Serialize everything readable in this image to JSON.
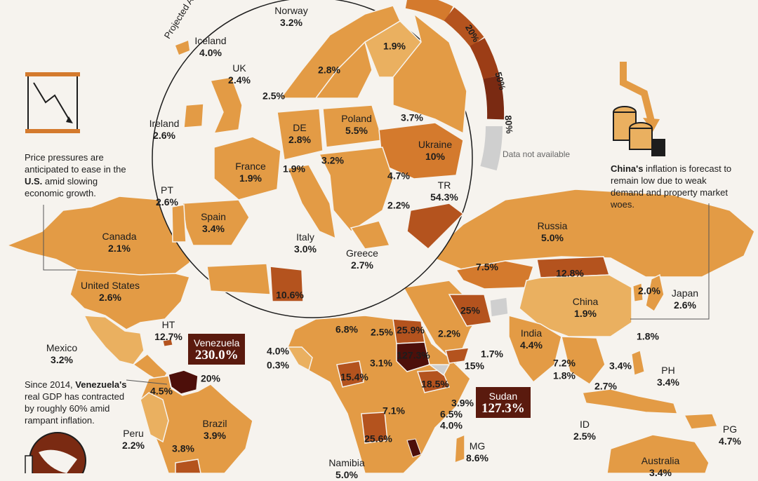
{
  "legend": {
    "title": "Projected Ann",
    "ticks": [
      "20%",
      "50%",
      "80%"
    ],
    "na_label": "Data not available"
  },
  "notes": {
    "us": {
      "pre": "Price pressures are anticipated to ease in the ",
      "bold": "U.S.",
      "post": " amid slowing economic growth."
    },
    "china": {
      "bold": "China's",
      "post": " inflation is forecast to remain low due to weak demand and property market woes."
    },
    "venezuela": {
      "pre": "Since 2014, ",
      "bold": "Venezuela's",
      "post": " real GDP has contracted by roughly 60% amid rampant inflation."
    }
  },
  "callouts": {
    "venezuela": {
      "name": "Venezuela",
      "value": "230.0%"
    },
    "sudan": {
      "name": "Sudan",
      "value": "127.3%"
    }
  },
  "europe": {
    "norway": {
      "name": "Norway",
      "value": "3.2%"
    },
    "iceland": {
      "name": "Iceland",
      "value": "4.0%"
    },
    "uk": {
      "name": "UK",
      "value": "2.4%"
    },
    "ireland": {
      "name": "Ireland",
      "value": "2.6%"
    },
    "pt": {
      "name": "PT",
      "value": "2.6%"
    },
    "france": {
      "name": "France",
      "value": "1.9%"
    },
    "spain": {
      "name": "Spain",
      "value": "3.4%"
    },
    "de": {
      "name": "DE",
      "value": "2.8%"
    },
    "poland": {
      "name": "Poland",
      "value": "5.5%"
    },
    "ukraine": {
      "name": "Ukraine",
      "value": "10%"
    },
    "italy": {
      "name": "Italy",
      "value": "3.0%"
    },
    "greece": {
      "name": "Greece",
      "value": "2.7%"
    },
    "tr": {
      "name": "TR",
      "value": "54.3%"
    },
    "v_1_9_fin": "1.9%",
    "v_2_8_swe": "2.8%",
    "v_2_5": "2.5%",
    "v_3_7": "3.7%",
    "v_1_9_ch": "1.9%",
    "v_3_2": "3.2%",
    "v_4_7": "4.7%",
    "v_2_2": "2.2%",
    "v_10_6": "10.6%"
  },
  "world": {
    "canada": {
      "name": "Canada",
      "value": "2.1%"
    },
    "us": {
      "name": "United States",
      "value": "2.6%"
    },
    "mexico": {
      "name": "Mexico",
      "value": "3.2%"
    },
    "ht": {
      "name": "HT",
      "value": "12.7%"
    },
    "peru": {
      "name": "Peru",
      "value": "2.2%"
    },
    "brazil": {
      "name": "Brazil",
      "value": "3.9%"
    },
    "russia": {
      "name": "Russia",
      "value": "5.0%"
    },
    "china": {
      "name": "China",
      "value": "1.9%"
    },
    "japan": {
      "name": "Japan",
      "value": "2.6%"
    },
    "india": {
      "name": "India",
      "value": "4.4%"
    },
    "ph": {
      "name": "PH",
      "value": "3.4%"
    },
    "id": {
      "name": "ID",
      "value": "2.5%"
    },
    "pg": {
      "name": "PG",
      "value": "4.7%"
    },
    "mg": {
      "name": "MG",
      "value": "8.6%"
    },
    "namibia": {
      "name": "Namibia",
      "value": "5.0%"
    },
    "australia": {
      "name": "Australia",
      "value": "3.4%"
    },
    "v_7_5": "7.5%",
    "v_12_8": "12.8%",
    "v_25": "25%",
    "v_2_0": "2.0%",
    "v_1_8_tw": "1.8%",
    "v_2_2_sa": "2.2%",
    "v_1_7": "1.7%",
    "v_15": "15%",
    "v_7_2": "7.2%",
    "v_1_8_th": "1.8%",
    "v_3_4_vn": "3.4%",
    "v_2_7": "2.7%",
    "v_6_8": "6.8%",
    "v_2_5_ly": "2.5%",
    "v_25_9": "25.9%",
    "v_127_3": "127.3%",
    "v_4_0": "4.0%",
    "v_0_3": "0.3%",
    "v_3_1": "3.1%",
    "v_15_4": "15.4%",
    "v_18_5": "18.5%",
    "v_3_9": "3.9%",
    "v_6_5": "6.5%",
    "v_4_0_tz": "4.0%",
    "v_7_1": "7.1%",
    "v_25_6": "25.6%",
    "v_4_5": "4.5%",
    "v_20": "20%",
    "v_3_8": "3.8%"
  },
  "colors": {
    "light": "#eab060",
    "mid": "#e39b45",
    "orange": "#d47a2d",
    "dark": "#b4531e",
    "deep": "#7a2a12",
    "darkest": "#4d0f0a",
    "na": "#cfcfcf",
    "bg": "#f6f3ee"
  }
}
